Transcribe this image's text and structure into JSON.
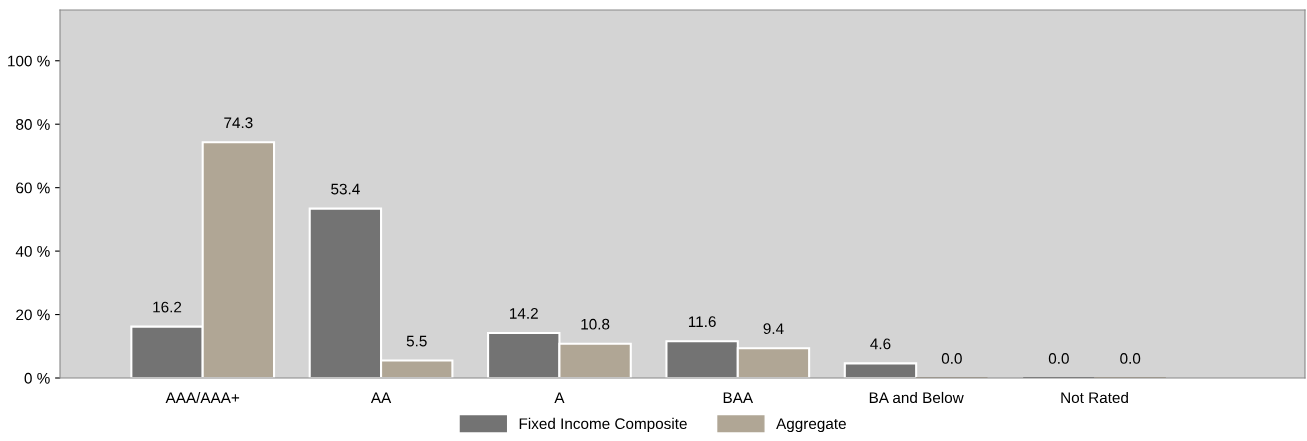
{
  "chart_data": {
    "type": "bar",
    "categories": [
      "AAA/AAA+",
      "AA",
      "A",
      "BAA",
      "BA and Below",
      "Not Rated"
    ],
    "series": [
      {
        "name": "Fixed Income Composite",
        "color": "#737373",
        "values": [
          16.2,
          53.4,
          14.2,
          11.6,
          4.6,
          0.0
        ],
        "value_labels": [
          "16.2",
          "53.4",
          "14.2",
          "11.6",
          "4.6",
          "0.0"
        ]
      },
      {
        "name": "Aggregate",
        "color": "#b0a695",
        "values": [
          74.3,
          5.5,
          10.8,
          9.4,
          0.0,
          0.0
        ],
        "value_labels": [
          "74.3",
          "5.5",
          "10.8",
          "9.4",
          "0.0",
          "0.0"
        ]
      }
    ],
    "ylim": [
      0,
      116
    ],
    "yticks": [
      {
        "value": 0,
        "label": "0 %"
      },
      {
        "value": 20,
        "label": "20 %"
      },
      {
        "value": 40,
        "label": "40 %"
      },
      {
        "value": 60,
        "label": "60 %"
      },
      {
        "value": 80,
        "label": "80 %"
      },
      {
        "value": 100,
        "label": "100 %"
      }
    ],
    "grid": false,
    "legend": "bottom"
  }
}
